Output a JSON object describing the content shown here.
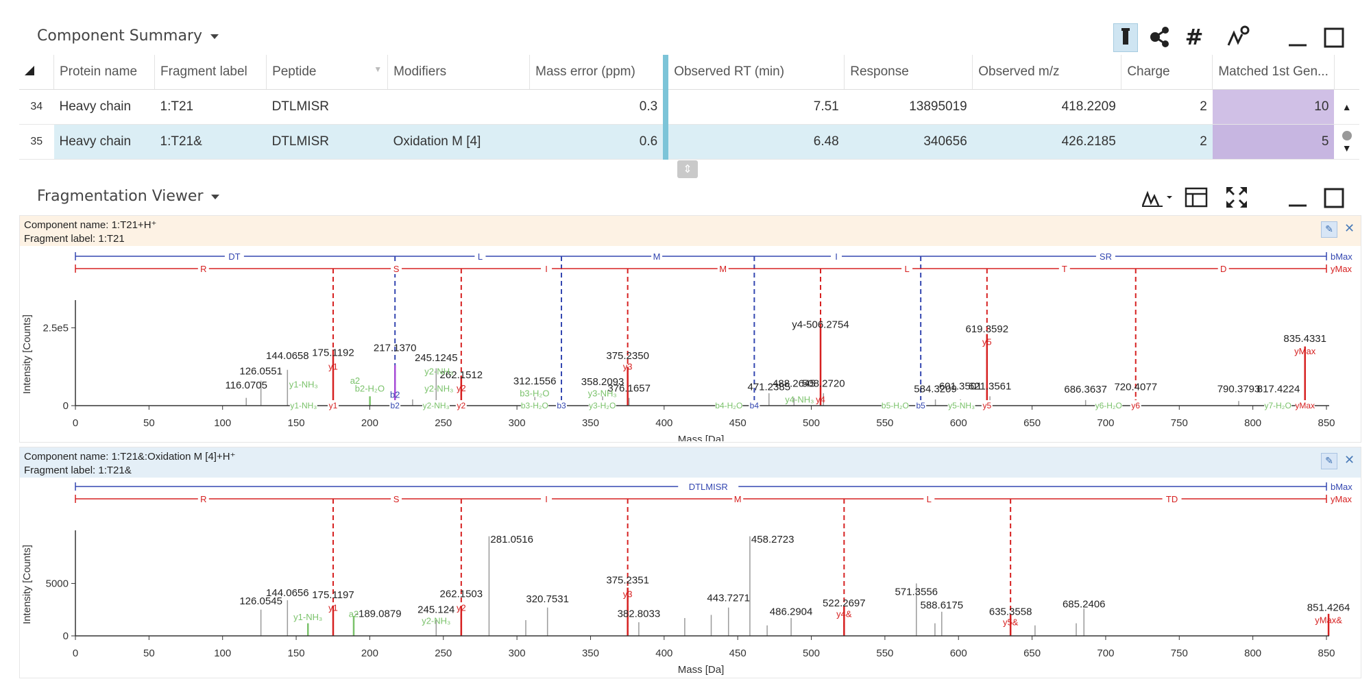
{
  "component_summary": {
    "title": "Component Summary",
    "columns": [
      "Protein name",
      "Fragment label",
      "Peptide",
      "Modifiers",
      "Mass error (ppm)",
      "Observed RT (min)",
      "Response",
      "Observed m/z",
      "Charge",
      "Matched 1st Gen..."
    ],
    "rows": [
      {
        "index": "34",
        "protein": "Heavy chain",
        "fragment": "1:T21",
        "peptide": "DTLMISR",
        "modifiers": "",
        "mass_error": "0.3",
        "rt": "7.51",
        "response": "13895019",
        "mz": "418.2209",
        "charge": "2",
        "matched": "10"
      },
      {
        "index": "35",
        "protein": "Heavy chain",
        "fragment": "1:T21&",
        "peptide": "DTLMISR",
        "modifiers": "Oxidation M [4]",
        "mass_error": "0.6",
        "rt": "6.48",
        "response": "340656",
        "mz": "426.2185",
        "charge": "2",
        "matched": "5"
      }
    ],
    "toolbar_icons": [
      "flask-icon",
      "share-icon",
      "hash-icon",
      "peak-settings-icon",
      "minimize-icon",
      "maximize-icon"
    ]
  },
  "fragmentation_viewer": {
    "title": "Fragmentation Viewer",
    "toolbar_icons": [
      "spectrum-view-icon",
      "table-layout-icon",
      "fullscreen-icon",
      "minimize-icon",
      "maximize-icon"
    ]
  },
  "chart_data": [
    {
      "type": "bar",
      "component_name": "Component name: 1:T21+H⁺",
      "fragment_label": "Fragment label: 1:T21",
      "xlabel": "Mass [Da]",
      "ylabel": "Intensity [Counts]",
      "xlim": [
        0,
        850
      ],
      "ylim": [
        0,
        330000
      ],
      "xticks": [
        0,
        50,
        100,
        150,
        200,
        250,
        300,
        350,
        400,
        450,
        500,
        550,
        600,
        650,
        700,
        750,
        800,
        850
      ],
      "yticks": [
        {
          "v": 0,
          "label": "0"
        },
        {
          "v": 250000,
          "label": "2.5e5"
        }
      ],
      "b_ladder": {
        "labels": [
          [
            "DT",
            108
          ],
          [
            "L",
            275
          ],
          [
            "M",
            395
          ],
          [
            "I",
            517
          ],
          [
            "SR",
            700
          ]
        ],
        "breaks": [
          217.14,
          330.22,
          461.26,
          574.35
        ],
        "end_label": "bMax"
      },
      "y_ladder": {
        "labels": [
          [
            "R",
            87
          ],
          [
            "S",
            218
          ],
          [
            "I",
            320
          ],
          [
            "M",
            440
          ],
          [
            "L",
            565
          ],
          [
            "T",
            672
          ],
          [
            "D",
            780
          ]
        ],
        "breaks": [
          175.12,
          262.15,
          375.24,
          506.28,
          619.36,
          720.4
        ],
        "end_label": "yMax"
      },
      "peaks": [
        {
          "x": 116.07,
          "y": 25000,
          "c": "#9a9a9a"
        },
        {
          "x": 126.06,
          "y": 80000,
          "c": "#9a9a9a"
        },
        {
          "x": 144.07,
          "y": 115000,
          "c": "#9a9a9a"
        },
        {
          "x": 175.12,
          "y": 180000,
          "c": "#d62020"
        },
        {
          "x": 200.1,
          "y": 30000,
          "c": "#7ac26a"
        },
        {
          "x": 217.14,
          "y": 130000,
          "c": "#a64ad6"
        },
        {
          "x": 229.1,
          "y": 20000,
          "c": "#9a9a9a"
        },
        {
          "x": 245.12,
          "y": 120000,
          "c": "#9a9a9a"
        },
        {
          "x": 262.15,
          "y": 95000,
          "c": "#d62020"
        },
        {
          "x": 312.16,
          "y": 28000,
          "c": "#9a9a9a"
        },
        {
          "x": 358.21,
          "y": 30000,
          "c": "#9a9a9a"
        },
        {
          "x": 375.24,
          "y": 125000,
          "c": "#d62020"
        },
        {
          "x": 376.17,
          "y": 25000,
          "c": "#9a9a9a"
        },
        {
          "x": 471.24,
          "y": 40000,
          "c": "#9a9a9a"
        },
        {
          "x": 488.26,
          "y": 25000,
          "c": "#9a9a9a"
        },
        {
          "x": 506.28,
          "y": 265000,
          "c": "#d62020"
        },
        {
          "x": 508.27,
          "y": 40000,
          "c": "#9a9a9a"
        },
        {
          "x": 584.32,
          "y": 20000,
          "c": "#9a9a9a"
        },
        {
          "x": 601.35,
          "y": 20000,
          "c": "#9a9a9a"
        },
        {
          "x": 619.36,
          "y": 230000,
          "c": "#d62020"
        },
        {
          "x": 621.36,
          "y": 30000,
          "c": "#9a9a9a"
        },
        {
          "x": 686.36,
          "y": 18000,
          "c": "#9a9a9a"
        },
        {
          "x": 720.41,
          "y": 20000,
          "c": "#d62020"
        },
        {
          "x": 790.38,
          "y": 15000,
          "c": "#9a9a9a"
        },
        {
          "x": 817.42,
          "y": 12000,
          "c": "#9a9a9a"
        },
        {
          "x": 835.43,
          "y": 190000,
          "c": "#d62020"
        }
      ],
      "labels": [
        {
          "x": 116.07,
          "y": 55000,
          "t": "116.0705",
          "c": "#222"
        },
        {
          "x": 126.06,
          "y": 100000,
          "t": "126.0551",
          "c": "#222"
        },
        {
          "x": 144.07,
          "y": 150000,
          "t": "144.0658",
          "c": "#222"
        },
        {
          "x": 175.12,
          "y": 160000,
          "t": "175.1192",
          "c": "#222"
        },
        {
          "x": 217.14,
          "y": 175000,
          "t": "217.1370",
          "c": "#222"
        },
        {
          "x": 245.12,
          "y": 143000,
          "t": "245.1245",
          "c": "#222"
        },
        {
          "x": 262.15,
          "y": 88000,
          "t": "262.1512",
          "c": "#222"
        },
        {
          "x": 312.16,
          "y": 68000,
          "t": "312.1556",
          "c": "#222"
        },
        {
          "x": 358.21,
          "y": 66000,
          "t": "358.2093",
          "c": "#222"
        },
        {
          "x": 375.24,
          "y": 150000,
          "t": "375.2350",
          "c": "#222"
        },
        {
          "x": 376.17,
          "y": 45000,
          "t": "376.1657",
          "c": "#222"
        },
        {
          "x": 471.24,
          "y": 50000,
          "t": "471.2385",
          "c": "#222"
        },
        {
          "x": 488.26,
          "y": 60000,
          "t": "488.2645",
          "c": "#222"
        },
        {
          "x": 508.27,
          "y": 60000,
          "t": "508.2720",
          "c": "#222"
        },
        {
          "x": 506.28,
          "y": 250000,
          "t": "y4-506.2754",
          "c": "#222"
        },
        {
          "x": 584.32,
          "y": 43000,
          "t": "584.3209",
          "c": "#222"
        },
        {
          "x": 601.35,
          "y": 52000,
          "t": "601.3501",
          "c": "#222"
        },
        {
          "x": 621.36,
          "y": 52000,
          "t": "621.3561",
          "c": "#222"
        },
        {
          "x": 619.36,
          "y": 235000,
          "t": "619.3592",
          "c": "#222"
        },
        {
          "x": 686.36,
          "y": 42000,
          "t": "686.3637",
          "c": "#222"
        },
        {
          "x": 720.41,
          "y": 50000,
          "t": "720.4077",
          "c": "#222"
        },
        {
          "x": 790.38,
          "y": 43000,
          "t": "790.3793",
          "c": "#222"
        },
        {
          "x": 817.42,
          "y": 43000,
          "t": "817.4224",
          "c": "#222"
        },
        {
          "x": 835.43,
          "y": 205000,
          "t": "835.4331",
          "c": "#222"
        }
      ],
      "ion_labels": [
        {
          "x": 175.12,
          "y": 115000,
          "t": "y1",
          "c": "#d62020"
        },
        {
          "x": 262.15,
          "y": 46000,
          "t": "y2",
          "c": "#d62020"
        },
        {
          "x": 375.24,
          "y": 115000,
          "t": "y3",
          "c": "#d62020"
        },
        {
          "x": 619.36,
          "y": 195000,
          "t": "y5",
          "c": "#d62020"
        },
        {
          "x": 835.43,
          "y": 165000,
          "t": "yMax",
          "c": "#d62020"
        },
        {
          "x": 506.28,
          "y": 10000,
          "t": "y4",
          "c": "#d62020"
        },
        {
          "x": 155.0,
          "y": 58000,
          "t": "y1-NH₃",
          "c": "#7ac26a"
        },
        {
          "x": 190.0,
          "y": 70000,
          "t": "a2",
          "c": "#7ac26a"
        },
        {
          "x": 200.0,
          "y": 45000,
          "t": "b2-H₂O",
          "c": "#7ac26a"
        },
        {
          "x": 217.14,
          "y": 25000,
          "t": "b2",
          "c": "#3346b0"
        },
        {
          "x": 247.0,
          "y": 100000,
          "t": "y2-NH₃",
          "c": "#7ac26a"
        },
        {
          "x": 247.0,
          "y": 45000,
          "t": "y2-NH₃",
          "c": "#7ac26a"
        },
        {
          "x": 312.0,
          "y": 30000,
          "t": "b3-H₂O",
          "c": "#7ac26a"
        },
        {
          "x": 358.0,
          "y": 30000,
          "t": "y3-NH₃",
          "c": "#7ac26a"
        },
        {
          "x": 492.0,
          "y": 10000,
          "t": "y4-NH₃",
          "c": "#7ac26a"
        }
      ],
      "axis_ion_labels": [
        {
          "x": 155.0,
          "t": "y1-NH₃",
          "c": "#7ac26a"
        },
        {
          "x": 175.12,
          "t": "y1",
          "c": "#d62020"
        },
        {
          "x": 217.14,
          "t": "b2",
          "c": "#3346b0"
        },
        {
          "x": 245.0,
          "t": "y2-NH₃",
          "c": "#7ac26a"
        },
        {
          "x": 262.15,
          "t": "y2",
          "c": "#d62020"
        },
        {
          "x": 312.0,
          "t": "b3-H₂O",
          "c": "#7ac26a"
        },
        {
          "x": 330.22,
          "t": "b3",
          "c": "#3346b0"
        },
        {
          "x": 358.0,
          "t": "y3-H₂O",
          "c": "#7ac26a"
        },
        {
          "x": 444.0,
          "t": "b4-H₂O",
          "c": "#7ac26a"
        },
        {
          "x": 461.26,
          "t": "b4",
          "c": "#3346b0"
        },
        {
          "x": 557.0,
          "t": "b5-H₂O",
          "c": "#7ac26a"
        },
        {
          "x": 574.35,
          "t": "b5",
          "c": "#3346b0"
        },
        {
          "x": 602.0,
          "t": "y5-NH₃",
          "c": "#7ac26a"
        },
        {
          "x": 619.36,
          "t": "y5",
          "c": "#d62020"
        },
        {
          "x": 702.0,
          "t": "y6-H₂O",
          "c": "#7ac26a"
        },
        {
          "x": 720.41,
          "t": "y6",
          "c": "#d62020"
        },
        {
          "x": 817.0,
          "t": "y7-H₂O",
          "c": "#7ac26a"
        },
        {
          "x": 835.43,
          "t": "yMax",
          "c": "#d62020"
        }
      ]
    },
    {
      "type": "bar",
      "component_name": "Component name: 1:T21&:Oxidation M [4]+H⁺",
      "fragment_label": "Fragment label: 1:T21&",
      "xlabel": "Mass [Da]",
      "ylabel": "Intensity [Counts]",
      "xlim": [
        0,
        850
      ],
      "ylim": [
        0,
        9800
      ],
      "xticks": [
        0,
        50,
        100,
        150,
        200,
        250,
        300,
        350,
        400,
        450,
        500,
        550,
        600,
        650,
        700,
        750,
        800,
        850
      ],
      "yticks": [
        {
          "v": 0,
          "label": "0"
        },
        {
          "v": 5000,
          "label": "5000"
        }
      ],
      "b_ladder": {
        "labels": [
          [
            "DTLMISR",
            430
          ]
        ],
        "breaks": [],
        "end_label": "bMax"
      },
      "y_ladder": {
        "labels": [
          [
            "R",
            87
          ],
          [
            "S",
            218
          ],
          [
            "I",
            320
          ],
          [
            "M",
            450
          ],
          [
            "L",
            580
          ],
          [
            "TD",
            745
          ]
        ],
        "breaks": [
          175.12,
          262.15,
          375.24,
          522.27,
          635.36
        ],
        "end_label": "yMax"
      },
      "peaks": [
        {
          "x": 126.05,
          "y": 2500,
          "c": "#9a9a9a"
        },
        {
          "x": 144.07,
          "y": 3400,
          "c": "#9a9a9a"
        },
        {
          "x": 158.0,
          "y": 1200,
          "c": "#7ac26a"
        },
        {
          "x": 175.12,
          "y": 2900,
          "c": "#d62020"
        },
        {
          "x": 189.09,
          "y": 1900,
          "c": "#7ac26a"
        },
        {
          "x": 245.12,
          "y": 1500,
          "c": "#9a9a9a"
        },
        {
          "x": 262.15,
          "y": 2800,
          "c": "#d62020"
        },
        {
          "x": 281.05,
          "y": 9500,
          "c": "#9a9a9a"
        },
        {
          "x": 306.0,
          "y": 1500,
          "c": "#9a9a9a"
        },
        {
          "x": 320.75,
          "y": 2700,
          "c": "#9a9a9a"
        },
        {
          "x": 375.24,
          "y": 4600,
          "c": "#d62020"
        },
        {
          "x": 382.8,
          "y": 1300,
          "c": "#9a9a9a"
        },
        {
          "x": 414.0,
          "y": 1700,
          "c": "#9a9a9a"
        },
        {
          "x": 432.0,
          "y": 2000,
          "c": "#9a9a9a"
        },
        {
          "x": 443.73,
          "y": 2700,
          "c": "#9a9a9a"
        },
        {
          "x": 458.27,
          "y": 9500,
          "c": "#9a9a9a"
        },
        {
          "x": 470.0,
          "y": 1000,
          "c": "#9a9a9a"
        },
        {
          "x": 486.29,
          "y": 1700,
          "c": "#9a9a9a"
        },
        {
          "x": 522.27,
          "y": 2800,
          "c": "#d62020"
        },
        {
          "x": 571.36,
          "y": 5000,
          "c": "#9a9a9a"
        },
        {
          "x": 584.0,
          "y": 1200,
          "c": "#9a9a9a"
        },
        {
          "x": 588.62,
          "y": 2300,
          "c": "#9a9a9a"
        },
        {
          "x": 635.36,
          "y": 2100,
          "c": "#d62020"
        },
        {
          "x": 652.0,
          "y": 1000,
          "c": "#9a9a9a"
        },
        {
          "x": 680.0,
          "y": 1200,
          "c": "#9a9a9a"
        },
        {
          "x": 685.24,
          "y": 2600,
          "c": "#9a9a9a"
        },
        {
          "x": 851.43,
          "y": 2100,
          "c": "#d62020"
        }
      ],
      "labels": [
        {
          "x": 126.05,
          "y": 3000,
          "t": "126.0545",
          "c": "#222"
        },
        {
          "x": 144.07,
          "y": 3800,
          "t": "144.0656",
          "c": "#222"
        },
        {
          "x": 175.12,
          "y": 3600,
          "t": "175.1197",
          "c": "#222"
        },
        {
          "x": 262.15,
          "y": 3700,
          "t": "262.1503",
          "c": "#222"
        },
        {
          "x": 245.12,
          "y": 2200,
          "t": "245.124",
          "c": "#222"
        },
        {
          "x": 320.75,
          "y": 3200,
          "t": "320.7531",
          "c": "#222"
        },
        {
          "x": 375.24,
          "y": 5000,
          "t": "375.2351",
          "c": "#222"
        },
        {
          "x": 382.8,
          "y": 1800,
          "t": "382.8033",
          "c": "#222"
        },
        {
          "x": 443.73,
          "y": 3300,
          "t": "443.7271",
          "c": "#222"
        },
        {
          "x": 486.29,
          "y": 2000,
          "t": "486.2904",
          "c": "#222"
        },
        {
          "x": 522.27,
          "y": 2800,
          "t": "522.2697",
          "c": "#222"
        },
        {
          "x": 571.36,
          "y": 3900,
          "t": "571.3556",
          "c": "#222"
        },
        {
          "x": 588.62,
          "y": 2600,
          "t": "588.6175",
          "c": "#222"
        },
        {
          "x": 635.36,
          "y": 2000,
          "t": "635.3558",
          "c": "#222"
        },
        {
          "x": 685.24,
          "y": 2700,
          "t": "685.2406",
          "c": "#222"
        },
        {
          "x": 851.43,
          "y": 2400,
          "t": "851.4264",
          "c": "#222"
        }
      ],
      "side_labels": [
        {
          "x": 281.05,
          "y": 8900,
          "t": "281.0516"
        },
        {
          "x": 458.27,
          "y": 8900,
          "t": "458.2723"
        },
        {
          "x": 189.09,
          "y": 1800,
          "t": "-189.0879"
        }
      ],
      "ion_labels": [
        {
          "x": 175.12,
          "y": 2400,
          "t": "y1",
          "c": "#d62020"
        },
        {
          "x": 262.15,
          "y": 2400,
          "t": "y2",
          "c": "#d62020"
        },
        {
          "x": 375.24,
          "y": 3700,
          "t": "y3",
          "c": "#d62020"
        },
        {
          "x": 522.27,
          "y": 1800,
          "t": "y4&",
          "c": "#d62020"
        },
        {
          "x": 635.36,
          "y": 1000,
          "t": "y5&",
          "c": "#d62020"
        },
        {
          "x": 851.43,
          "y": 1200,
          "t": "yMax&",
          "c": "#d62020"
        },
        {
          "x": 158.0,
          "y": 1500,
          "t": "y1-NH₃",
          "c": "#7ac26a"
        },
        {
          "x": 189.09,
          "y": 1800,
          "t": "a2",
          "c": "#7ac26a"
        },
        {
          "x": 245.12,
          "y": 1150,
          "t": "y2-NH₃",
          "c": "#7ac26a"
        }
      ],
      "axis_ion_labels": []
    }
  ]
}
